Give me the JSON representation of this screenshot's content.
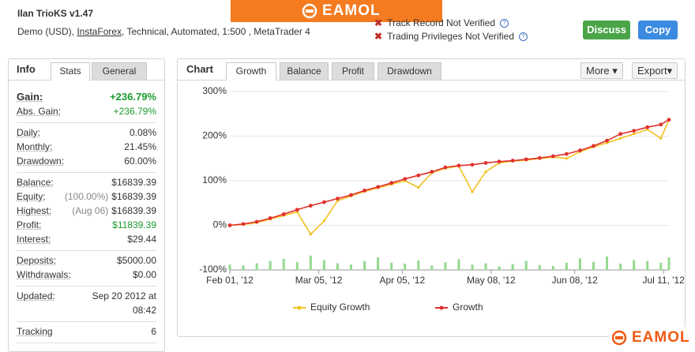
{
  "header": {
    "title": "Ilan TrioKS v1.47",
    "subtitle": [
      "Demo (USD), ",
      "InstaForex",
      ", Technical, Automated, 1:500 , MetaTrader 4"
    ],
    "verification": [
      "Track Record Not Verified",
      "Trading Privileges Not Verified"
    ],
    "buttons": [
      "Discuss",
      "Copy"
    ]
  },
  "watermarks": [
    "EAMOL",
    "EAMOL"
  ],
  "info": {
    "tabs": [
      "Info",
      "Stats",
      "General"
    ],
    "groups": [
      {
        "rows": [
          {
            "label": "Gain:",
            "value": "+236.79%",
            "color": "#1a9b2f"
          },
          {
            "label": "Abs. Gain:",
            "value": "+236.79%",
            "color": "#1a9b2f"
          }
        ]
      },
      {
        "rows": [
          {
            "label": "Daily:",
            "value": "0.08%"
          },
          {
            "label": "Monthly:",
            "value": "21.45%"
          },
          {
            "label": "Drawdown:",
            "value": "60.00%"
          }
        ]
      },
      {
        "rows": [
          {
            "label": "Balance:",
            "value": "$16839.39"
          },
          {
            "label": "Equity:",
            "note": "(100.00%)",
            "value": "$16839.39"
          },
          {
            "label": "Highest:",
            "note": "(Aug 06)",
            "value": "$16839.39"
          },
          {
            "label": "Profit:",
            "value": "$11839.39",
            "color": "#1a9b2f"
          },
          {
            "label": "Interest:",
            "value": "$29.44"
          }
        ]
      },
      {
        "rows": [
          {
            "label": "Deposits:",
            "value": "$5000.00"
          },
          {
            "label": "Withdrawals:",
            "value": "$0.00"
          }
        ]
      },
      {
        "rows": [
          {
            "label": "Updated:",
            "value": "Sep 20 2012 at 08:42"
          }
        ]
      },
      {
        "rows": [
          {
            "label": "Tracking",
            "value": "6"
          }
        ]
      }
    ]
  },
  "chart_panel": {
    "title": "Chart",
    "tabs": [
      "Growth",
      "Balance",
      "Profit",
      "Drawdown"
    ],
    "menus": [
      "More",
      "Export"
    ]
  },
  "chart_data": {
    "type": "line",
    "x": [
      "2012-02-01",
      "2012-02-06",
      "2012-02-11",
      "2012-02-16",
      "2012-02-21",
      "2012-02-26",
      "2012-03-02",
      "2012-03-07",
      "2012-03-12",
      "2012-03-17",
      "2012-03-22",
      "2012-03-27",
      "2012-04-01",
      "2012-04-06",
      "2012-04-11",
      "2012-04-16",
      "2012-04-21",
      "2012-04-26",
      "2012-05-01",
      "2012-05-06",
      "2012-05-11",
      "2012-05-16",
      "2012-05-21",
      "2012-05-26",
      "2012-05-31",
      "2012-06-05",
      "2012-06-10",
      "2012-06-15",
      "2012-06-20",
      "2012-06-25",
      "2012-06-30",
      "2012-07-05",
      "2012-07-10",
      "2012-07-13"
    ],
    "series": [
      {
        "name": "Equity Growth",
        "color": "#f2c01e",
        "values": [
          0,
          2,
          6,
          14,
          22,
          30,
          -20,
          10,
          55,
          66,
          76,
          84,
          92,
          100,
          85,
          118,
          128,
          133,
          75,
          120,
          140,
          144,
          146,
          150,
          153,
          150,
          165,
          176,
          185,
          195,
          205,
          215,
          195,
          236.79
        ]
      },
      {
        "name": "Growth",
        "color": "#e0302c",
        "values": [
          0,
          3,
          8,
          16,
          25,
          35,
          44,
          52,
          60,
          68,
          78,
          86,
          95,
          104,
          112,
          120,
          130,
          134,
          136,
          140,
          143,
          145,
          148,
          151,
          155,
          160,
          168,
          178,
          190,
          205,
          212,
          220,
          226,
          236.79
        ]
      },
      {
        "type": "bar",
        "color": "#93d98f",
        "values": [
          -88,
          -90,
          -85,
          -80,
          -75,
          -82,
          -68,
          -78,
          -85,
          -88,
          -80,
          -72,
          -84,
          -86,
          -79,
          -90,
          -83,
          -76,
          -88,
          -85,
          -92,
          -87,
          -80,
          -89,
          -91,
          -84,
          -74,
          -82,
          -70,
          -86,
          -78,
          -80,
          -84,
          -72
        ]
      }
    ],
    "xlim": [
      "2012-02-01",
      "2012-07-13"
    ],
    "xticks": [
      {
        "value": "2012-02-01",
        "label": "Feb 01, '12"
      },
      {
        "value": "2012-03-05",
        "label": "Mar 05, '12"
      },
      {
        "value": "2012-04-05",
        "label": "Apr 05, '12"
      },
      {
        "value": "2012-05-08",
        "label": "May 08, '12"
      },
      {
        "value": "2012-06-08",
        "label": "Jun 08, '12"
      },
      {
        "value": "2012-07-11",
        "label": "Jul 11, '12"
      }
    ],
    "ylim": [
      -100,
      300
    ],
    "yticks": [
      {
        "value": -100,
        "label": "-100%"
      },
      {
        "value": 0,
        "label": "0%"
      },
      {
        "value": 100,
        "label": "100%"
      },
      {
        "value": 200,
        "label": "200%"
      },
      {
        "value": 300,
        "label": "300%"
      }
    ],
    "grid": true,
    "legend": "bottom"
  }
}
